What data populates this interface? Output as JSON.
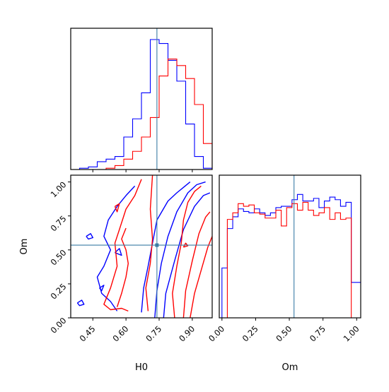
{
  "chart_data": {
    "type": "corner",
    "parameters": [
      "H0",
      "Om"
    ],
    "colors": {
      "series_a": "#0000ff",
      "series_b": "#ff0000",
      "truth": "#3a7ca5"
    },
    "truth": {
      "H0": 0.74,
      "Om": 0.535
    },
    "panels": [
      {
        "id": "h0-marginal",
        "type": "step-histogram",
        "xlim": [
          0.35,
          0.99
        ],
        "yticks_shown": false,
        "x_tick_labels_shown": false,
        "bin_edges": [
          0.35,
          0.39,
          0.43,
          0.47,
          0.51,
          0.55,
          0.59,
          0.63,
          0.67,
          0.71,
          0.75,
          0.79,
          0.83,
          0.87,
          0.91,
          0.95,
          0.99
        ],
        "series": [
          {
            "color": "blue",
            "counts": [
              0.0,
              0.01,
              0.02,
              0.06,
              0.08,
              0.1,
              0.25,
              0.39,
              0.59,
              1.0,
              0.97,
              0.84,
              0.68,
              0.35,
              0.1,
              0.01
            ]
          },
          {
            "color": "red",
            "counts": [
              0.0,
              0.0,
              0.0,
              0.0,
              0.01,
              0.03,
              0.08,
              0.14,
              0.25,
              0.4,
              0.72,
              0.85,
              0.8,
              0.7,
              0.5,
              0.2
            ]
          }
        ]
      },
      {
        "id": "joint",
        "type": "contour",
        "xlim": [
          0.35,
          0.99
        ],
        "ylim": [
          0.0,
          1.05
        ],
        "xticks": [
          "0.45",
          "0.60",
          "0.75",
          "0.90"
        ],
        "yticks": [
          "0.00",
          "0.25",
          "0.50",
          "0.75",
          "1.00"
        ],
        "xlabel": "H0",
        "ylabel": "Om",
        "contours": [
          {
            "color": "blue",
            "points": [
              [
                0.67,
                0.04
              ],
              [
                0.68,
                0.22
              ],
              [
                0.7,
                0.38
              ],
              [
                0.72,
                0.55
              ],
              [
                0.74,
                0.72
              ],
              [
                0.79,
                0.86
              ],
              [
                0.83,
                0.92
              ],
              [
                0.86,
                0.96
              ],
              [
                0.89,
                1.0
              ]
            ]
          },
          {
            "color": "blue",
            "points": [
              [
                0.73,
                0.0
              ],
              [
                0.74,
                0.2
              ],
              [
                0.76,
                0.4
              ],
              [
                0.79,
                0.6
              ],
              [
                0.83,
                0.78
              ],
              [
                0.88,
                0.92
              ],
              [
                0.92,
                0.98
              ],
              [
                0.96,
                1.0
              ]
            ]
          },
          {
            "color": "blue",
            "points": [
              [
                0.77,
                0.0
              ],
              [
                0.78,
                0.18
              ],
              [
                0.82,
                0.42
              ],
              [
                0.86,
                0.65
              ],
              [
                0.91,
                0.82
              ],
              [
                0.95,
                0.9
              ],
              [
                0.98,
                0.92
              ]
            ]
          },
          {
            "color": "blue",
            "points": [
              [
                0.64,
                0.97
              ],
              [
                0.6,
                0.9
              ],
              [
                0.56,
                0.82
              ],
              [
                0.52,
                0.72
              ],
              [
                0.5,
                0.6
              ],
              [
                0.53,
                0.5
              ],
              [
                0.5,
                0.38
              ],
              [
                0.47,
                0.3
              ],
              [
                0.49,
                0.18
              ],
              [
                0.53,
                0.12
              ],
              [
                0.56,
                0.05
              ]
            ]
          },
          {
            "color": "blue",
            "points": [
              [
                0.55,
                0.48
              ],
              [
                0.58,
                0.46
              ],
              [
                0.57,
                0.51
              ],
              [
                0.55,
                0.48
              ]
            ]
          },
          {
            "color": "blue",
            "points": [
              [
                0.48,
                0.22
              ],
              [
                0.5,
                0.24
              ],
              [
                0.49,
                0.2
              ],
              [
                0.48,
                0.22
              ]
            ]
          },
          {
            "color": "blue",
            "points": [
              [
                0.38,
                0.11
              ],
              [
                0.4,
                0.13
              ],
              [
                0.41,
                0.1
              ],
              [
                0.39,
                0.09
              ],
              [
                0.38,
                0.11
              ]
            ]
          },
          {
            "color": "blue",
            "points": [
              [
                0.42,
                0.6
              ],
              [
                0.44,
                0.62
              ],
              [
                0.45,
                0.59
              ],
              [
                0.43,
                0.58
              ],
              [
                0.42,
                0.6
              ]
            ]
          },
          {
            "color": "red",
            "points": [
              [
                0.72,
                1.05
              ],
              [
                0.71,
                0.8
              ],
              [
                0.72,
                0.58
              ],
              [
                0.71,
                0.4
              ],
              [
                0.69,
                0.22
              ],
              [
                0.7,
                0.05
              ]
            ]
          },
          {
            "color": "red",
            "points": [
              [
                0.82,
                0.0
              ],
              [
                0.81,
                0.18
              ],
              [
                0.83,
                0.38
              ],
              [
                0.85,
                0.55
              ],
              [
                0.86,
                0.72
              ],
              [
                0.88,
                0.85
              ],
              [
                0.91,
                0.93
              ],
              [
                0.94,
                0.97
              ]
            ]
          },
          {
            "color": "red",
            "points": [
              [
                0.86,
                0.0
              ],
              [
                0.87,
                0.2
              ],
              [
                0.9,
                0.42
              ],
              [
                0.93,
                0.62
              ],
              [
                0.96,
                0.74
              ],
              [
                0.98,
                0.78
              ]
            ]
          },
          {
            "color": "red",
            "points": [
              [
                0.89,
                0.0
              ],
              [
                0.91,
                0.18
              ],
              [
                0.94,
                0.35
              ],
              [
                0.97,
                0.52
              ],
              [
                0.99,
                0.6
              ]
            ]
          },
          {
            "color": "red",
            "points": [
              [
                0.67,
                1.02
              ],
              [
                0.64,
                0.9
              ],
              [
                0.6,
                0.8
              ],
              [
                0.57,
                0.65
              ],
              [
                0.55,
                0.55
              ],
              [
                0.56,
                0.38
              ],
              [
                0.53,
                0.22
              ],
              [
                0.5,
                0.1
              ],
              [
                0.53,
                0.06
              ],
              [
                0.58,
                0.07
              ],
              [
                0.61,
                0.05
              ]
            ]
          },
          {
            "color": "red",
            "points": [
              [
                0.6,
                0.66
              ],
              [
                0.58,
                0.58
              ],
              [
                0.6,
                0.5
              ],
              [
                0.61,
                0.4
              ],
              [
                0.6,
                0.3
              ],
              [
                0.58,
                0.18
              ],
              [
                0.56,
                0.08
              ]
            ]
          },
          {
            "color": "red",
            "points": [
              [
                0.55,
                0.82
              ],
              [
                0.57,
                0.84
              ],
              [
                0.56,
                0.78
              ],
              [
                0.55,
                0.82
              ]
            ]
          },
          {
            "color": "red",
            "points": [
              [
                0.86,
                0.52
              ],
              [
                0.87,
                0.55
              ],
              [
                0.88,
                0.53
              ],
              [
                0.86,
                0.52
              ]
            ]
          }
        ]
      },
      {
        "id": "om-marginal",
        "type": "step-histogram",
        "xlim": [
          -0.02,
          1.03
        ],
        "xticks": [
          "0.00",
          "0.25",
          "0.50",
          "0.75",
          "1.00"
        ],
        "xlabel": "Om",
        "yticks_shown": false,
        "bin_edges": [
          0.0,
          0.04,
          0.08,
          0.12,
          0.16,
          0.2,
          0.24,
          0.28,
          0.32,
          0.36,
          0.4,
          0.44,
          0.48,
          0.52,
          0.56,
          0.6,
          0.64,
          0.68,
          0.72,
          0.76,
          0.8,
          0.84,
          0.88,
          0.92,
          0.96,
          1.0,
          1.04
        ],
        "series": [
          {
            "color": "blue",
            "counts": [
              0.38,
              0.68,
              0.77,
              0.83,
              0.81,
              0.8,
              0.83,
              0.8,
              0.78,
              0.8,
              0.84,
              0.85,
              0.85,
              0.9,
              0.94,
              0.89,
              0.89,
              0.91,
              0.84,
              0.89,
              0.92,
              0.9,
              0.85,
              0.88,
              0.27,
              0.27
            ]
          },
          {
            "color": "red",
            "counts": [
              0.0,
              0.75,
              0.8,
              0.87,
              0.85,
              0.86,
              0.8,
              0.79,
              0.76,
              0.76,
              0.82,
              0.7,
              0.84,
              0.87,
              0.82,
              0.88,
              0.82,
              0.78,
              0.8,
              0.84,
              0.75,
              0.8,
              0.75,
              0.76,
              0.0,
              0.0
            ]
          }
        ]
      }
    ]
  }
}
